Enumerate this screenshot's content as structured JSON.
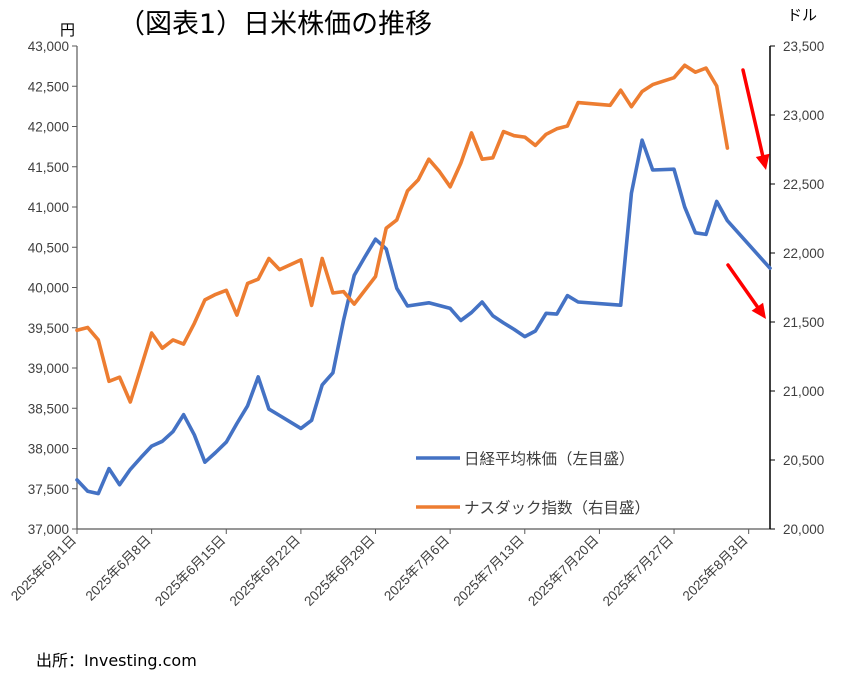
{
  "chart_data": {
    "type": "line",
    "title": "（図表1）日米株価の推移",
    "left_unit": "円",
    "right_unit": "ドル",
    "source": "出所：Investing.com",
    "grid": false,
    "legend_position": "bottom-right",
    "x_tick_labels": [
      "2025年6月1日",
      "2025年6月8日",
      "2025年6月15日",
      "2025年6月22日",
      "2025年6月29日",
      "2025年7月6日",
      "2025年7月13日",
      "2025年7月20日",
      "2025年7月27日",
      "2025年8月3日"
    ],
    "x_start": "2025-06-01",
    "x_end": "2025-08-05",
    "left_axis": {
      "min": 37000,
      "max": 43000,
      "ticks": [
        37000,
        37500,
        38000,
        38500,
        39000,
        39500,
        40000,
        40500,
        41000,
        41500,
        42000,
        42500,
        43000
      ],
      "tick_labels": [
        "37,000",
        "37,500",
        "38,000",
        "38,500",
        "39,000",
        "39,500",
        "40,000",
        "40,500",
        "41,000",
        "41,500",
        "42,000",
        "42,500",
        "43,000"
      ]
    },
    "right_axis": {
      "min": 20000,
      "max": 23500,
      "ticks": [
        20000,
        20500,
        21000,
        21500,
        22000,
        22500,
        23000,
        23500
      ],
      "tick_labels": [
        "20,000",
        "20,500",
        "21,000",
        "21,500",
        "22,000",
        "22,500",
        "23,000",
        "23,500"
      ]
    },
    "series": [
      {
        "name": "日経平均株価（左目盛）",
        "axis": "left",
        "color": "#4472C4",
        "points": [
          [
            "2025-06-01",
            37610
          ],
          [
            "2025-06-02",
            37470
          ],
          [
            "2025-06-03",
            37440
          ],
          [
            "2025-06-04",
            37750
          ],
          [
            "2025-06-05",
            37550
          ],
          [
            "2025-06-06",
            37740
          ],
          [
            "2025-06-07",
            37890
          ],
          [
            "2025-06-08",
            38030
          ],
          [
            "2025-06-09",
            38090
          ],
          [
            "2025-06-10",
            38210
          ],
          [
            "2025-06-11",
            38420
          ],
          [
            "2025-06-12",
            38170
          ],
          [
            "2025-06-13",
            37830
          ],
          [
            "2025-06-14",
            37950
          ],
          [
            "2025-06-15",
            38080
          ],
          [
            "2025-06-16",
            38310
          ],
          [
            "2025-06-17",
            38530
          ],
          [
            "2025-06-18",
            38890
          ],
          [
            "2025-06-19",
            38490
          ],
          [
            "2025-06-20",
            38410
          ],
          [
            "2025-06-21",
            38330
          ],
          [
            "2025-06-22",
            38250
          ],
          [
            "2025-06-23",
            38350
          ],
          [
            "2025-06-24",
            38790
          ],
          [
            "2025-06-25",
            38940
          ],
          [
            "2025-06-26",
            39590
          ],
          [
            "2025-06-27",
            40150
          ],
          [
            "2025-06-28",
            40380
          ],
          [
            "2025-06-29",
            40600
          ],
          [
            "2025-06-30",
            40480
          ],
          [
            "2025-07-01",
            39990
          ],
          [
            "2025-07-02",
            39770
          ],
          [
            "2025-07-04",
            39810
          ],
          [
            "2025-07-06",
            39740
          ],
          [
            "2025-07-07",
            39590
          ],
          [
            "2025-07-08",
            39690
          ],
          [
            "2025-07-09",
            39820
          ],
          [
            "2025-07-10",
            39650
          ],
          [
            "2025-07-11",
            39560
          ],
          [
            "2025-07-12",
            39480
          ],
          [
            "2025-07-13",
            39390
          ],
          [
            "2025-07-14",
            39460
          ],
          [
            "2025-07-15",
            39680
          ],
          [
            "2025-07-16",
            39670
          ],
          [
            "2025-07-17",
            39900
          ],
          [
            "2025-07-18",
            39820
          ],
          [
            "2025-07-22",
            39780
          ],
          [
            "2025-07-23",
            41170
          ],
          [
            "2025-07-24",
            41830
          ],
          [
            "2025-07-25",
            41460
          ],
          [
            "2025-07-27",
            41470
          ],
          [
            "2025-07-28",
            41000
          ],
          [
            "2025-07-29",
            40680
          ],
          [
            "2025-07-30",
            40660
          ],
          [
            "2025-07-31",
            41070
          ],
          [
            "2025-08-01",
            40830
          ],
          [
            "2025-08-05",
            40240
          ]
        ]
      },
      {
        "name": "ナスダック指数（右目盛）",
        "axis": "right",
        "color": "#ED7D31",
        "points": [
          [
            "2025-06-01",
            21440
          ],
          [
            "2025-06-02",
            21460
          ],
          [
            "2025-06-03",
            21370
          ],
          [
            "2025-06-04",
            21070
          ],
          [
            "2025-06-05",
            21100
          ],
          [
            "2025-06-06",
            20920
          ],
          [
            "2025-06-07",
            21170
          ],
          [
            "2025-06-08",
            21420
          ],
          [
            "2025-06-09",
            21310
          ],
          [
            "2025-06-10",
            21370
          ],
          [
            "2025-06-11",
            21340
          ],
          [
            "2025-06-12",
            21490
          ],
          [
            "2025-06-13",
            21660
          ],
          [
            "2025-06-14",
            21700
          ],
          [
            "2025-06-15",
            21730
          ],
          [
            "2025-06-16",
            21550
          ],
          [
            "2025-06-17",
            21780
          ],
          [
            "2025-06-18",
            21810
          ],
          [
            "2025-06-19",
            21960
          ],
          [
            "2025-06-20",
            21880
          ],
          [
            "2025-06-22",
            21950
          ],
          [
            "2025-06-23",
            21620
          ],
          [
            "2025-06-24",
            21960
          ],
          [
            "2025-06-25",
            21710
          ],
          [
            "2025-06-26",
            21720
          ],
          [
            "2025-06-27",
            21630
          ],
          [
            "2025-06-29",
            21830
          ],
          [
            "2025-06-30",
            22180
          ],
          [
            "2025-07-01",
            22240
          ],
          [
            "2025-07-02",
            22450
          ],
          [
            "2025-07-03",
            22530
          ],
          [
            "2025-07-04",
            22680
          ],
          [
            "2025-07-05",
            22590
          ],
          [
            "2025-07-06",
            22480
          ],
          [
            "2025-07-07",
            22650
          ],
          [
            "2025-07-08",
            22870
          ],
          [
            "2025-07-09",
            22680
          ],
          [
            "2025-07-10",
            22690
          ],
          [
            "2025-07-11",
            22880
          ],
          [
            "2025-07-12",
            22850
          ],
          [
            "2025-07-13",
            22840
          ],
          [
            "2025-07-14",
            22780
          ],
          [
            "2025-07-15",
            22860
          ],
          [
            "2025-07-16",
            22900
          ],
          [
            "2025-07-17",
            22920
          ],
          [
            "2025-07-18",
            23090
          ],
          [
            "2025-07-21",
            23070
          ],
          [
            "2025-07-22",
            23180
          ],
          [
            "2025-07-23",
            23060
          ],
          [
            "2025-07-24",
            23170
          ],
          [
            "2025-07-25",
            23220
          ],
          [
            "2025-07-27",
            23270
          ],
          [
            "2025-07-28",
            23360
          ],
          [
            "2025-07-29",
            23310
          ],
          [
            "2025-07-30",
            23340
          ],
          [
            "2025-07-31",
            23210
          ],
          [
            "2025-08-01",
            22760
          ]
        ]
      }
    ]
  }
}
